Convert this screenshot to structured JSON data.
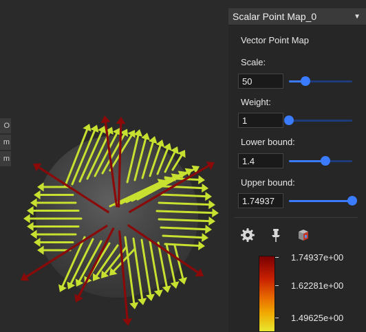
{
  "panel": {
    "title": "Scalar Point Map_0",
    "section_title": "Vector Point Map",
    "scale": {
      "label": "Scale:",
      "value": "50",
      "fraction": 0.26
    },
    "weight": {
      "label": "Weight:",
      "value": "1",
      "fraction": 0.0
    },
    "lower_bound": {
      "label": "Lower bound:",
      "value": "1.4",
      "fraction": 0.58
    },
    "upper_bound": {
      "label": "Upper bound:",
      "value": "1.74937",
      "fraction": 1.0
    },
    "tools": [
      "gear-icon",
      "pin-icon",
      "cube-view-icon"
    ],
    "colorbar": {
      "max_label": "1.74937e+00",
      "mid_label": "1.62281e+00",
      "low_label": "1.49625e+00",
      "colors": [
        "#7a0000",
        "#c82000",
        "#e86a00",
        "#f0a800",
        "#e8e830"
      ]
    }
  },
  "side_tabs": [
    "O",
    "m",
    "m"
  ],
  "colors": {
    "accent": "#3a7bff",
    "arrow_yellow": "#c8e030",
    "arrow_red": "#8a0a0a",
    "panel_bg": "#262626",
    "viewport_bg": "#2a2a2a"
  }
}
